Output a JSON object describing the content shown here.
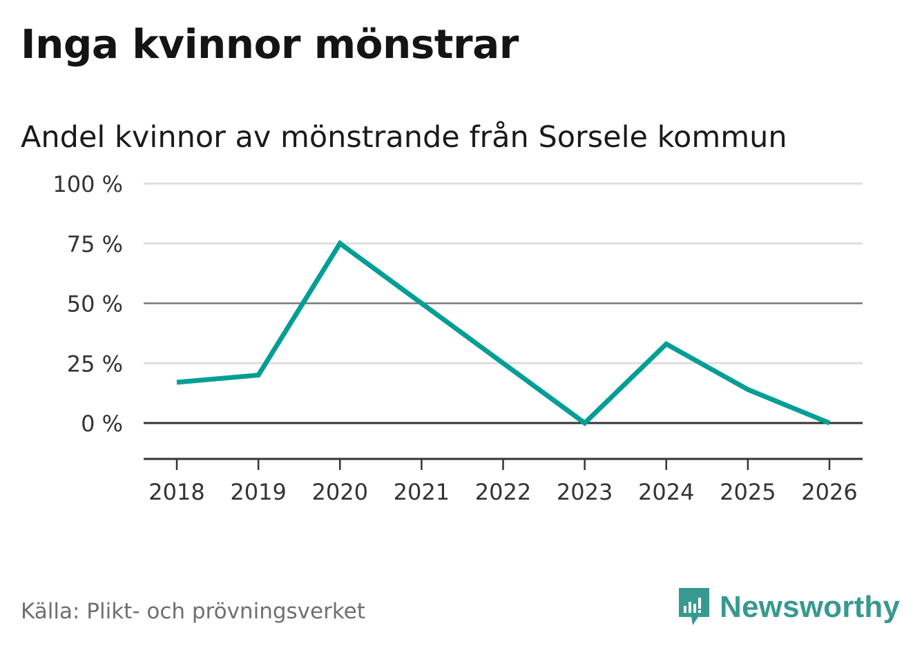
{
  "header": {
    "title": "Inga kvinnor mönstrar"
  },
  "chart_data": {
    "type": "line",
    "title": "Andel kvinnor av mönstrande från Sorsele kommun",
    "xlabel": "",
    "ylabel": "",
    "categories": [
      "2018",
      "2019",
      "2020",
      "2021",
      "2022",
      "2023",
      "2024",
      "2025",
      "2026"
    ],
    "series": [
      {
        "name": "Andel kvinnor",
        "values": [
          17,
          20,
          75,
          50,
          25,
          0,
          33,
          14,
          0
        ],
        "color": "#009e95"
      }
    ],
    "ylim": [
      -15,
      100
    ],
    "yticks": [
      0,
      25,
      50,
      75,
      100
    ],
    "ytick_labels": [
      "0 %",
      "25 %",
      "50 %",
      "75 %",
      "100 %"
    ],
    "grid": true,
    "legend": "none"
  },
  "footer": {
    "source": "Källa: Plikt- och prövningsverket",
    "brand": "Newsworthy",
    "brand_color": "#37998f",
    "brand_icon": "newsworthy-logo-icon"
  }
}
